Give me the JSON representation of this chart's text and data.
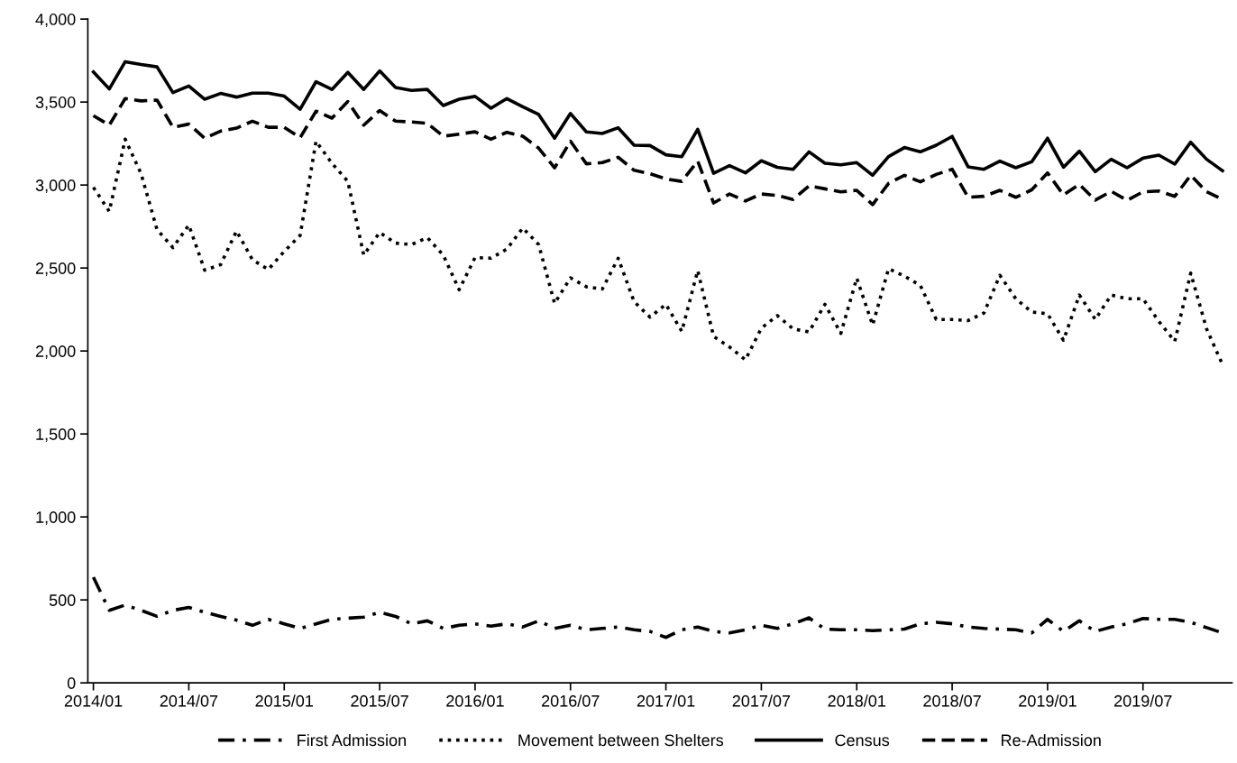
{
  "chart_data": {
    "type": "line",
    "categories": [
      "2014/01",
      null,
      null,
      null,
      null,
      null,
      "2014/07",
      null,
      null,
      null,
      null,
      null,
      "2015/01",
      null,
      null,
      null,
      null,
      null,
      "2015/07",
      null,
      null,
      null,
      null,
      null,
      "2016/01",
      null,
      null,
      null,
      null,
      null,
      "2016/07",
      null,
      null,
      null,
      null,
      null,
      "2017/01",
      null,
      null,
      null,
      null,
      null,
      "2017/07",
      null,
      null,
      null,
      null,
      null,
      "2018/01",
      null,
      null,
      null,
      null,
      null,
      "2018/07",
      null,
      null,
      null,
      null,
      null,
      "2019/01",
      null,
      null,
      null,
      null,
      null,
      "2019/07",
      null,
      null,
      null,
      null,
      null
    ],
    "series": [
      {
        "name": "First Admission",
        "color": "#000000",
        "line_style": "dashdot",
        "values": [
          637,
          437,
          469,
          437,
          401,
          437,
          455,
          425,
          401,
          378,
          347,
          383,
          356,
          328,
          356,
          383,
          390,
          396,
          425,
          401,
          356,
          374,
          328,
          347,
          356,
          342,
          356,
          337,
          374,
          328,
          347,
          320,
          328,
          337,
          320,
          310,
          274,
          320,
          337,
          310,
          301,
          320,
          347,
          328,
          356,
          392,
          324,
          320,
          320,
          315,
          320,
          324,
          356,
          365,
          356,
          337,
          328,
          324,
          320,
          301,
          383,
          310,
          374,
          310,
          337,
          356,
          388,
          383,
          383,
          365,
          333,
          301
        ]
      },
      {
        "name": "Movement between Shelters",
        "color": "#000000",
        "line_style": "dotted",
        "values": [
          2986,
          2841,
          3276,
          3068,
          2732,
          2623,
          2759,
          2487,
          2520,
          2723,
          2550,
          2491,
          2600,
          2696,
          3264,
          3131,
          3022,
          2578,
          2714,
          2650,
          2641,
          2683,
          2578,
          2369,
          2563,
          2559,
          2614,
          2741,
          2641,
          2287,
          2441,
          2387,
          2373,
          2559,
          2297,
          2204,
          2281,
          2118,
          2485,
          2088,
          2024,
          1947,
          2137,
          2213,
          2133,
          2115,
          2281,
          2106,
          2439,
          2156,
          2496,
          2451,
          2395,
          2190,
          2190,
          2183,
          2229,
          2456,
          2315,
          2235,
          2224,
          2065,
          2337,
          2190,
          2337,
          2315,
          2315,
          2178,
          2058,
          2469,
          2133,
          1918
        ]
      },
      {
        "name": "Census",
        "color": "#000000",
        "line_style": "solid",
        "values": [
          3681,
          3579,
          3743,
          3726,
          3712,
          3557,
          3597,
          3517,
          3552,
          3530,
          3554,
          3554,
          3536,
          3457,
          3623,
          3576,
          3679,
          3576,
          3688,
          3588,
          3570,
          3576,
          3479,
          3517,
          3534,
          3463,
          3521,
          3472,
          3425,
          3282,
          3431,
          3320,
          3311,
          3345,
          3240,
          3238,
          3182,
          3171,
          3336,
          3071,
          3117,
          3073,
          3146,
          3107,
          3095,
          3200,
          3131,
          3122,
          3135,
          3059,
          3171,
          3226,
          3200,
          3240,
          3293,
          3110,
          3095,
          3144,
          3104,
          3140,
          3282,
          3107,
          3204,
          3080,
          3155,
          3104,
          3162,
          3180,
          3126,
          3258,
          3155,
          3086
        ]
      },
      {
        "name": "Re-Admission",
        "color": "#000000",
        "line_style": "dashed",
        "values": [
          3418,
          3361,
          3521,
          3507,
          3512,
          3348,
          3367,
          3282,
          3325,
          3343,
          3385,
          3348,
          3348,
          3285,
          3445,
          3403,
          3503,
          3361,
          3449,
          3385,
          3380,
          3372,
          3294,
          3307,
          3321,
          3276,
          3318,
          3294,
          3222,
          3104,
          3264,
          3128,
          3135,
          3167,
          3089,
          3068,
          3037,
          3022,
          3144,
          2892,
          2946,
          2904,
          2946,
          2937,
          2913,
          2995,
          2977,
          2959,
          2968,
          2882,
          3010,
          3059,
          3019,
          3064,
          3095,
          2926,
          2932,
          2968,
          2926,
          2971,
          3073,
          2940,
          3004,
          2909,
          2962,
          2908,
          2959,
          2964,
          2932,
          3059,
          2959,
          2913
        ]
      }
    ],
    "ylim": [
      0,
      4000
    ],
    "yticks": [
      0,
      {
        "value": 500,
        "label": "500"
      },
      {
        "value": 1000,
        "label": "1,000"
      },
      {
        "value": 1500,
        "label": "1,500"
      },
      {
        "value": 2000,
        "label": "2,000"
      },
      {
        "value": 2500,
        "label": "2,500"
      },
      {
        "value": 3000,
        "label": "3,000"
      },
      {
        "value": 3500,
        "label": "3,500"
      },
      {
        "value": 4000,
        "label": "4,000"
      }
    ],
    "grid": false,
    "legend": "bottom",
    "marker": "none"
  }
}
